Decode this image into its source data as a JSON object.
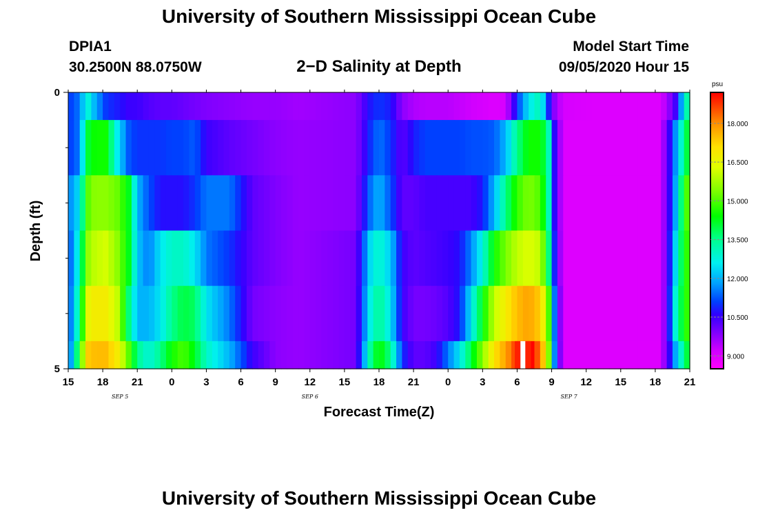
{
  "header": {
    "title": "University of Southern Mississippi Ocean Cube",
    "station_id": "DPIA1",
    "coordinates": "30.2500N 88.0750W",
    "plot_title": "2−D Salinity at Depth",
    "model_start_label": "Model Start Time",
    "model_start_value": "09/05/2020 Hour 15"
  },
  "footer": {
    "title": "University of Southern Mississippi Ocean Cube"
  },
  "chart_data": {
    "type": "heatmap",
    "title": "2−D Salinity at Depth",
    "xlabel": "Forecast Time(Z)",
    "ylabel": "Depth (ft)",
    "x_range_hours": [
      0,
      54
    ],
    "x_tick_labels": [
      "15",
      "18",
      "21",
      "0",
      "3",
      "6",
      "9",
      "12",
      "15",
      "18",
      "21",
      "0",
      "3",
      "6",
      "9",
      "12",
      "15",
      "18",
      "21"
    ],
    "x_tick_hours": [
      0,
      3,
      6,
      9,
      12,
      15,
      18,
      21,
      24,
      27,
      30,
      33,
      36,
      39,
      42,
      45,
      48,
      51,
      54
    ],
    "day_labels": [
      {
        "label": "SEP 5",
        "hour": 4.5
      },
      {
        "label": "SEP 6",
        "hour": 21
      },
      {
        "label": "SEP 7",
        "hour": 43.5
      }
    ],
    "y_range": [
      0,
      5
    ],
    "y_tick_labels": [
      "0",
      "5"
    ],
    "y_minor_ticks": [
      1,
      2,
      3,
      4
    ],
    "depth_levels": [
      0,
      1,
      2,
      3,
      4
    ],
    "x_keyframes": [
      0,
      1,
      1.6,
      2.3,
      3.3,
      4.3,
      5.3,
      6,
      7,
      8,
      9,
      10,
      11,
      12,
      14,
      16,
      18,
      20,
      25,
      26.3,
      27,
      28,
      29,
      30,
      31,
      32,
      33,
      34,
      35,
      36,
      37,
      38,
      39,
      40,
      41,
      41.7,
      42,
      43,
      46,
      50,
      51.3,
      52,
      52.8,
      53.5,
      54
    ],
    "salinity_keyframes": [
      [
        11,
        11.5,
        13,
        12,
        11,
        10.8,
        10.5,
        10.5,
        10.3,
        10.2,
        10.2,
        10.1,
        10,
        9.9,
        9.8,
        9.7,
        9.7,
        9.6,
        9.8,
        10.8,
        11,
        10.8,
        9.8,
        9.5,
        9.4,
        9.4,
        9.4,
        9.3,
        9.2,
        9.1,
        9,
        9.1,
        11,
        12.5,
        13.2,
        11,
        10,
        9.1,
        9,
        9,
        9,
        9.5,
        10.5,
        12.5,
        14
      ],
      [
        11,
        11.5,
        14,
        14.5,
        14.5,
        12.5,
        11.2,
        11,
        11,
        11,
        11.1,
        11.1,
        11.3,
        10.5,
        10.2,
        10,
        9.8,
        9.7,
        9.8,
        11,
        11.5,
        11,
        10.2,
        10.8,
        11.1,
        11.1,
        11.1,
        11.1,
        11.2,
        11.2,
        11.3,
        12,
        13.5,
        14.5,
        14.5,
        13.5,
        11.2,
        9,
        9,
        9,
        9,
        10,
        11.8,
        13.5,
        14.5
      ],
      [
        11.5,
        12.5,
        15,
        15.5,
        15.5,
        15.2,
        14.2,
        12,
        11.2,
        10.7,
        10.7,
        10.7,
        11,
        11.5,
        11.5,
        10.2,
        9.9,
        9.7,
        9.8,
        11.5,
        12,
        11.2,
        10.2,
        10.2,
        10.4,
        10.4,
        10.4,
        10.4,
        10.4,
        10.8,
        12,
        13.5,
        14.8,
        15.4,
        15,
        13.5,
        11.2,
        9,
        9,
        9,
        9,
        10,
        12,
        14.5,
        15.5
      ],
      [
        11,
        13,
        15.5,
        16,
        16.2,
        15.5,
        14.2,
        12.2,
        11.5,
        12.5,
        13,
        13,
        12.5,
        11.5,
        11,
        10.2,
        9.9,
        9.7,
        10,
        12.5,
        13,
        12.2,
        10.5,
        10.2,
        10.3,
        10.4,
        10.5,
        10.7,
        11.6,
        12.8,
        14.5,
        15.3,
        16,
        16.3,
        16,
        14,
        11.5,
        9,
        9,
        9,
        9,
        10,
        12.5,
        14.5,
        15
      ],
      [
        11,
        13.5,
        16.5,
        16.8,
        16.8,
        16,
        13.5,
        12,
        12,
        12.5,
        13.5,
        14,
        13.8,
        12.5,
        11.5,
        10,
        9.8,
        9.7,
        10,
        12.8,
        13.5,
        12.5,
        10.5,
        10,
        10,
        10.1,
        10.3,
        10.8,
        12.5,
        14.3,
        16,
        16.8,
        17.5,
        17.8,
        17.3,
        15.5,
        12.3,
        9,
        9,
        9,
        9,
        10,
        13,
        14.5,
        15
      ],
      [
        11,
        14.5,
        17.3,
        17.5,
        17.5,
        16.8,
        15,
        13.5,
        12.8,
        13.5,
        14.5,
        15,
        14.2,
        13,
        12,
        10.5,
        9.8,
        9.7,
        10,
        13.5,
        14.5,
        13.5,
        11,
        10.2,
        10.2,
        10.5,
        11.5,
        12.5,
        14,
        15.5,
        17,
        17.8,
        18.8,
        19.5,
        18.2,
        16,
        12.5,
        9,
        9,
        9,
        9,
        10,
        12,
        13.5,
        14.5
      ]
    ],
    "plot_range_hours": [
      0,
      54
    ],
    "hotspot": {
      "hour_start": 38.8,
      "hour_end": 40.2,
      "depth_level": 5,
      "note": "white (out of range)"
    },
    "colorbar": {
      "unit": "psu",
      "min": 8.5,
      "max": 19.2,
      "tick_labels": [
        "9.000",
        "10.500",
        "12.000",
        "13.500",
        "15.000",
        "16.500",
        "18.000"
      ],
      "tick_values": [
        9,
        10.5,
        12,
        13.5,
        15,
        16.5,
        18
      ],
      "color_stops": [
        {
          "v": 8.5,
          "c": "#ff00ff"
        },
        {
          "v": 9.2,
          "c": "#d000ff"
        },
        {
          "v": 9.9,
          "c": "#8000ff"
        },
        {
          "v": 10.6,
          "c": "#3000ff"
        },
        {
          "v": 11.1,
          "c": "#0040ff"
        },
        {
          "v": 11.8,
          "c": "#00a0ff"
        },
        {
          "v": 12.6,
          "c": "#00f0f0"
        },
        {
          "v": 13.5,
          "c": "#00ff90"
        },
        {
          "v": 14.4,
          "c": "#00ff00"
        },
        {
          "v": 15.4,
          "c": "#80ff00"
        },
        {
          "v": 16.3,
          "c": "#e0ff00"
        },
        {
          "v": 17.1,
          "c": "#ffe000"
        },
        {
          "v": 18.0,
          "c": "#ff9000"
        },
        {
          "v": 19.2,
          "c": "#ff0000"
        }
      ]
    }
  }
}
